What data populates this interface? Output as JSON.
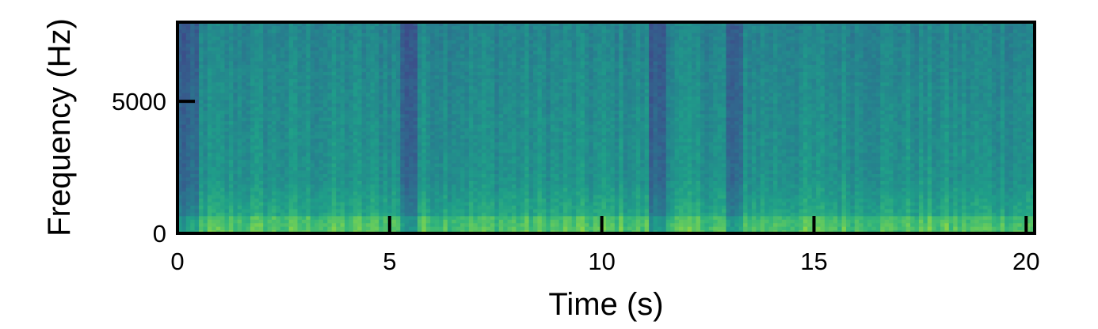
{
  "chart_data": {
    "type": "heatmap",
    "title": "",
    "xlabel": "Time (s)",
    "ylabel": "Frequency (Hz)",
    "xlim": [
      0,
      20.2
    ],
    "ylim": [
      0,
      8000
    ],
    "x_ticks": [
      0,
      5,
      10,
      15,
      20
    ],
    "x_tick_labels": [
      "0",
      "5",
      "10",
      "15",
      "20"
    ],
    "y_ticks": [
      0,
      5000
    ],
    "y_tick_labels": [
      "0",
      "5000"
    ],
    "colormap": "viridis",
    "grid": false,
    "quiet_intervals_s": [
      [
        0,
        0.5
      ],
      [
        5.3,
        5.7
      ],
      [
        11.1,
        11.5
      ],
      [
        12.9,
        13.3
      ]
    ],
    "energy_concentration_hz": [
      0,
      2000
    ]
  }
}
